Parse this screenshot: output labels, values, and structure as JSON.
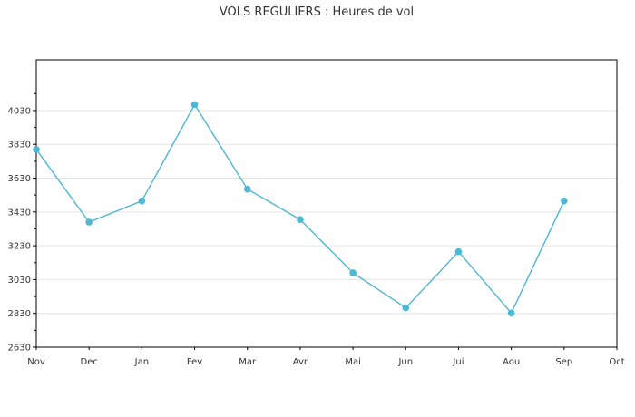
{
  "chart_data": {
    "type": "line",
    "title": "VOLS REGULIERS : Heures de vol",
    "xlabel": "",
    "ylabel": "",
    "categories": [
      "Nov",
      "Dec",
      "Jan",
      "Fev",
      "Mar",
      "Avr",
      "Mai",
      "Jun",
      "Jui",
      "Aou",
      "Sep",
      "Oct"
    ],
    "y_ticks": [
      "2630",
      "2830",
      "3030",
      "3230",
      "3430",
      "3630",
      "3830",
      "4030"
    ],
    "ylim": [
      2630,
      4330
    ],
    "grid": true,
    "series": [
      {
        "color": "#4fb7d3",
        "values": [
          3800,
          3370,
          3495,
          4065,
          3565,
          3385,
          3070,
          2863,
          3195,
          2832,
          3495,
          null
        ]
      }
    ]
  }
}
